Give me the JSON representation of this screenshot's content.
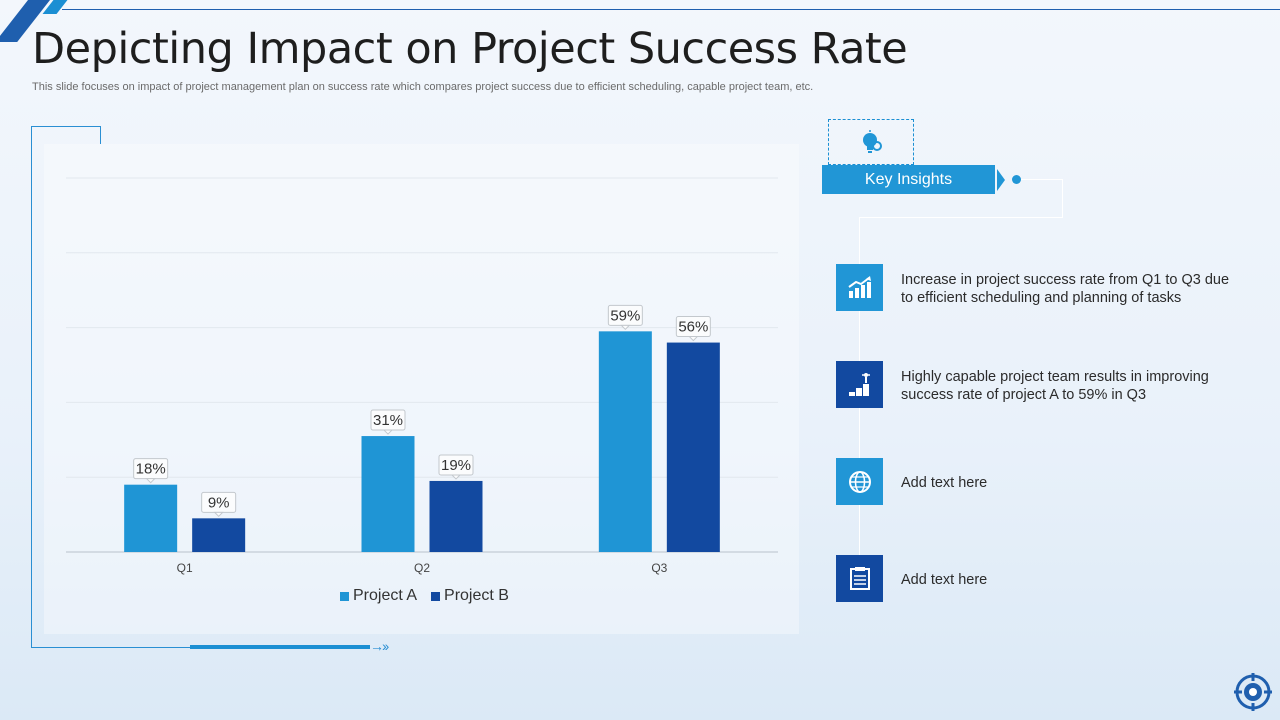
{
  "header": {
    "title": "Depicting Impact on Project Success Rate",
    "subtitle": "This slide focuses on impact of project management plan on success rate which compares project success due to efficient scheduling, capable project team, etc."
  },
  "colors": {
    "project_a": "#1f95d5",
    "project_b": "#1249a0",
    "accent": "#2196d6"
  },
  "chart_data": {
    "type": "bar",
    "title": "",
    "xlabel": "",
    "ylabel": "",
    "categories": [
      "Q1",
      "Q2",
      "Q3"
    ],
    "series": [
      {
        "name": "Project A",
        "values": [
          18,
          31,
          59
        ],
        "labels": [
          "18%",
          "31%",
          "59%"
        ]
      },
      {
        "name": "Project B",
        "values": [
          9,
          19,
          56
        ],
        "labels": [
          "9%",
          "19%",
          "56%"
        ]
      }
    ],
    "ylim": [
      0,
      100
    ],
    "grid": true,
    "legend": "bottom"
  },
  "insights": {
    "heading": "Key Insights",
    "items": [
      {
        "icon": "growth-chart-icon",
        "text": "Increase in project success rate from Q1 to Q3 due to efficient scheduling and planning of tasks"
      },
      {
        "icon": "success-steps-icon",
        "text": "Highly capable project team results in improving success rate of project A to 59% in Q3"
      },
      {
        "icon": "globe-icon",
        "text": "Add text here"
      },
      {
        "icon": "document-icon",
        "text": "Add text here"
      }
    ]
  }
}
